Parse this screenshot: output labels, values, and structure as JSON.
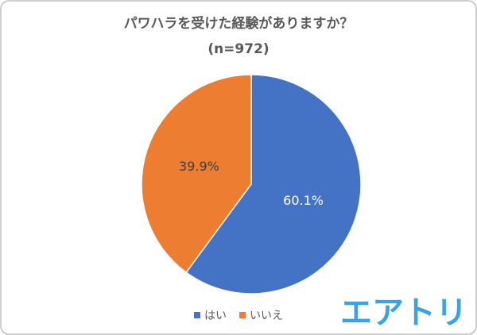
{
  "chart_data": {
    "type": "pie",
    "title": "パワハラを受けた経験がありますか？",
    "subtitle": "(n=972)",
    "categories": [
      "はい",
      "いいえ"
    ],
    "values": [
      60.1,
      39.9
    ],
    "value_labels": [
      "60.1%",
      "39.9%"
    ],
    "colors": [
      "#4472c4",
      "#ed7d31"
    ],
    "legend": "bottom"
  },
  "logo": "エアトリ"
}
